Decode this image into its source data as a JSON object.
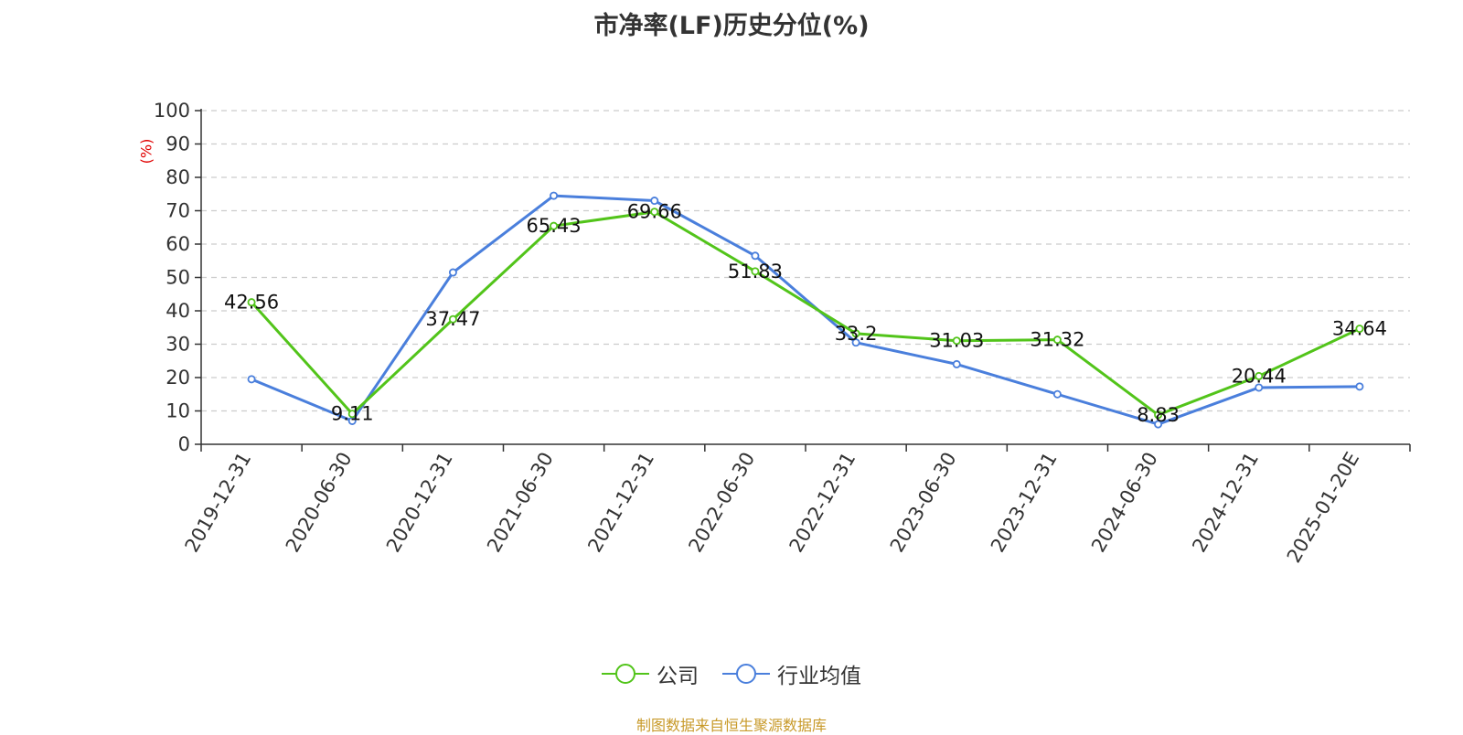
{
  "chart_data": {
    "type": "line",
    "title": "市净率(LF)历史分位(%)",
    "y_unit": "(%)",
    "ylim": [
      0,
      100
    ],
    "yticks": [
      0,
      10,
      20,
      30,
      40,
      50,
      60,
      70,
      80,
      90,
      100
    ],
    "grid": true,
    "legend_position": "bottom",
    "categories": [
      "2019-12-31",
      "2020-06-30",
      "2020-12-31",
      "2021-06-30",
      "2021-12-31",
      "2022-06-30",
      "2022-12-31",
      "2023-06-30",
      "2023-12-31",
      "2024-06-30",
      "2024-12-31",
      "2025-01-20E"
    ],
    "series": [
      {
        "name": "公司",
        "color": "#52c41a",
        "values": [
          42.56,
          9.11,
          37.47,
          65.43,
          69.66,
          51.83,
          33.2,
          31.03,
          31.32,
          8.83,
          20.44,
          34.64
        ],
        "labels": [
          "42.56",
          "9.11",
          "37.47",
          "65.43",
          "69.66",
          "51.83",
          "33.2",
          "31.03",
          "31.32",
          "8.83",
          "20.44",
          "34.64"
        ]
      },
      {
        "name": "行业均值",
        "color": "#4a7fdc",
        "values": [
          19.5,
          7.0,
          51.5,
          74.5,
          73.0,
          56.5,
          30.5,
          24.0,
          15.0,
          6.0,
          17.0,
          17.3
        ]
      }
    ]
  },
  "source": "制图数据来自恒生聚源数据库"
}
